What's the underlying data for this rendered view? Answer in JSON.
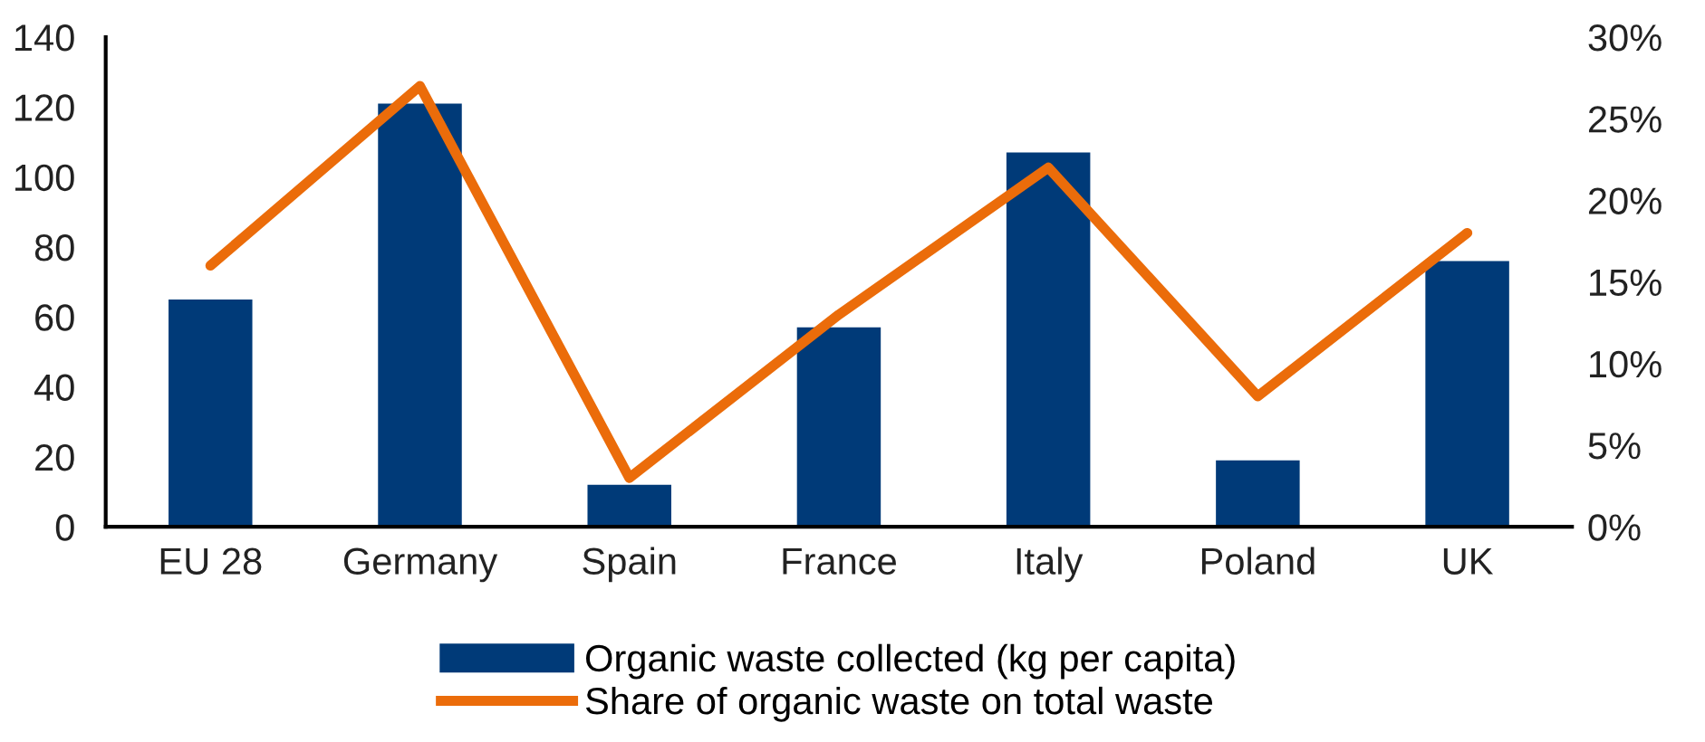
{
  "chart_data": {
    "type": "bar",
    "categories": [
      "EU 28",
      "Germany",
      "Spain",
      "France",
      "Italy",
      "Poland",
      "UK"
    ],
    "series": [
      {
        "name": "Organic waste collected (kg per capita)",
        "color": "#003a78",
        "values": [
          65,
          121,
          12,
          57,
          107,
          19,
          76
        ]
      },
      {
        "name": "Share of organic waste on total waste",
        "type": "line",
        "axis": "y2",
        "color": "#eb6c0a",
        "values": [
          16,
          27,
          3,
          13,
          22,
          8,
          18
        ]
      }
    ],
    "ylim": [
      0,
      140
    ],
    "yticks": [
      0,
      20,
      40,
      60,
      80,
      100,
      120,
      140
    ],
    "y2lim": [
      0,
      30
    ],
    "y2ticks": [
      {
        "value": 0,
        "label": "0%"
      },
      {
        "value": 5,
        "label": "5%"
      },
      {
        "value": 10,
        "label": "10%"
      },
      {
        "value": 15,
        "label": "15%"
      },
      {
        "value": 20,
        "label": "20%"
      },
      {
        "value": 25,
        "label": "25%"
      },
      {
        "value": 30,
        "label": "30%"
      }
    ],
    "grid": false,
    "legend": "bottom",
    "marker": "none",
    "line_style": "solid"
  }
}
